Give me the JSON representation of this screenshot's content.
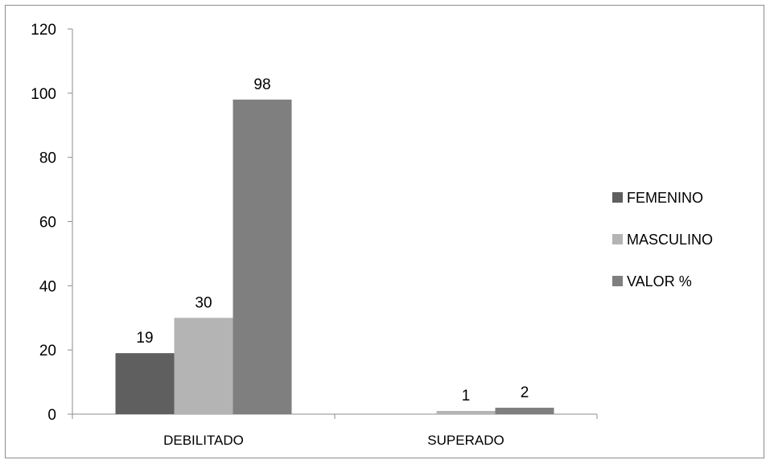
{
  "chart_data": {
    "type": "bar",
    "categories": [
      "DEBILITADO",
      "SUPERADO"
    ],
    "series": [
      {
        "name": "FEMENINO",
        "color": "#5f5f5f",
        "values": [
          19,
          0
        ]
      },
      {
        "name": "MASCULINO",
        "color": "#b4b4b4",
        "values": [
          30,
          1
        ]
      },
      {
        "name": "VALOR %",
        "color": "#7f7f7f",
        "values": [
          98,
          2
        ]
      }
    ],
    "data_labels": [
      [
        "19",
        ""
      ],
      [
        "30",
        "1"
      ],
      [
        "98",
        "2"
      ]
    ],
    "yticks": [
      0,
      20,
      40,
      60,
      80,
      100,
      120
    ],
    "ylim": [
      0,
      120
    ],
    "grid": false,
    "legend_position": "right"
  }
}
